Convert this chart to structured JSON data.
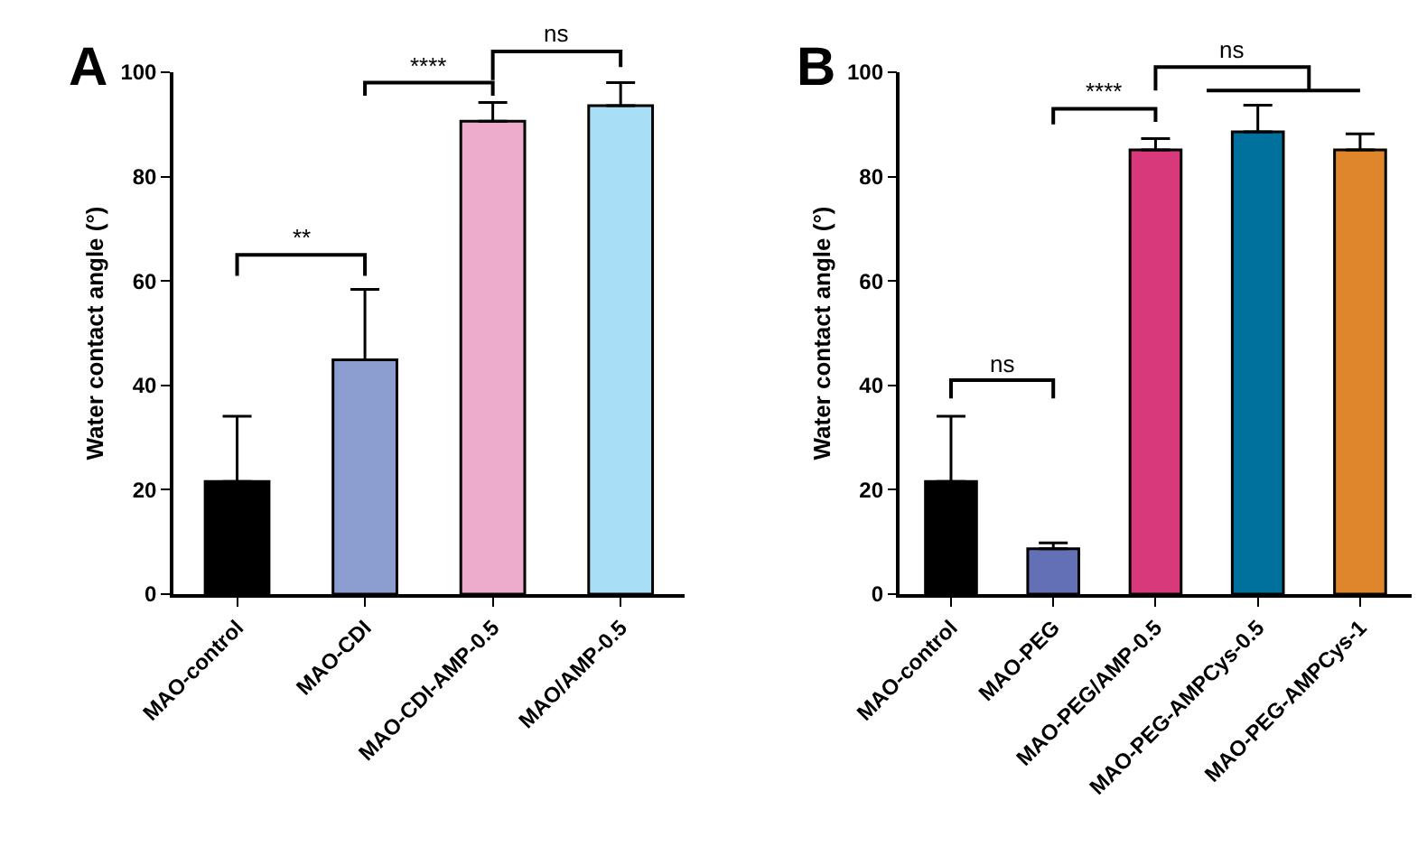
{
  "chart_data": [
    {
      "type": "bar",
      "title": "A",
      "ylabel": "Water contact angle (°)",
      "categories": [
        "MAO-control",
        "MAO-CDI",
        "MAO-CDI-AMP-0.5",
        "MAO/AMP-0.5"
      ],
      "values": [
        21.6,
        44.9,
        90.6,
        93.6
      ],
      "errors": [
        [
          21.6,
          34.1
        ],
        [
          44.9,
          58.4
        ],
        [
          90.6,
          94.2
        ],
        [
          93.6,
          98.0
        ]
      ],
      "colors": [
        "#000000",
        "#8c9dd0",
        "#eeaccc",
        "#a8dff6"
      ],
      "ylim": [
        0,
        100
      ],
      "yticks": [
        0,
        20,
        40,
        60,
        80,
        100
      ],
      "annotations": [
        "**",
        "****",
        "ns"
      ]
    },
    {
      "type": "bar",
      "title": "B",
      "ylabel": "Water contact angle (°)",
      "categories": [
        "MAO-control",
        "MAO-PEG",
        "MAO-PEG/AMP-0.5",
        "MAO-PEG-AMPCys-0.5",
        "MAO-PEG-AMPCys-1"
      ],
      "values": [
        21.6,
        8.7,
        85.1,
        88.6,
        85.1
      ],
      "errors": [
        [
          21.6,
          34.1
        ],
        [
          8.7,
          9.8
        ],
        [
          85.1,
          87.3
        ],
        [
          88.6,
          93.7
        ],
        [
          85.1,
          88.2
        ]
      ],
      "colors": [
        "#000000",
        "#6470b5",
        "#d8397a",
        "#00709c",
        "#df852b"
      ],
      "ylim": [
        0,
        100
      ],
      "yticks": [
        0,
        20,
        40,
        60,
        80,
        100
      ],
      "annotations": [
        "ns",
        "****",
        "ns"
      ]
    }
  ]
}
